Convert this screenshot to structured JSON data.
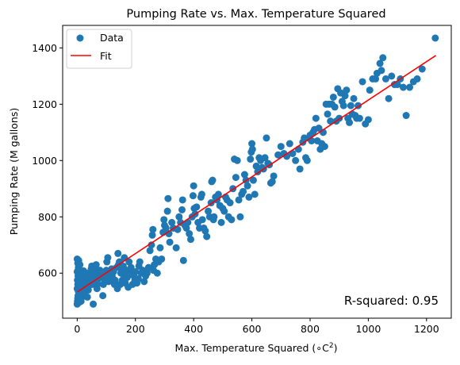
{
  "chart_data": {
    "type": "scatter",
    "title": "Pumping Rate vs. Max. Temperature Squared",
    "xlabel_text": "Max. Temperature Squared (",
    "xlabel_super_text": "∘C",
    "xlabel_exp": "2",
    "xlabel_close": ")",
    "ylabel": "Pumping Rate (M gallons)",
    "xlim": [
      -50,
      1285
    ],
    "ylim": [
      440,
      1480
    ],
    "x_ticks": [
      0,
      200,
      400,
      600,
      800,
      1000,
      1200
    ],
    "y_ticks": [
      600,
      800,
      1000,
      1200,
      1400
    ],
    "x_tick_labels": [
      "0",
      "200",
      "400",
      "600",
      "800",
      "1000",
      "1200"
    ],
    "y_tick_labels": [
      "600",
      "800",
      "1000",
      "1200",
      "1400"
    ],
    "grid": false,
    "legend_position": "top-left",
    "annotation": "R-squared: 0.95",
    "series": [
      {
        "name": "Data",
        "kind": "scatter",
        "color": "#1f77b4",
        "points": [
          [
            0,
            490
          ],
          [
            1,
            500
          ],
          [
            2,
            510
          ],
          [
            3,
            520
          ],
          [
            4,
            535
          ],
          [
            0,
            545
          ],
          [
            2,
            560
          ],
          [
            1,
            575
          ],
          [
            3,
            590
          ],
          [
            0,
            605
          ],
          [
            4,
            620
          ],
          [
            2,
            635
          ],
          [
            0,
            650
          ],
          [
            5,
            495
          ],
          [
            6,
            505
          ],
          [
            8,
            515
          ],
          [
            7,
            530
          ],
          [
            9,
            545
          ],
          [
            10,
            555
          ],
          [
            8,
            570
          ],
          [
            11,
            585
          ],
          [
            12,
            600
          ],
          [
            6,
            615
          ],
          [
            9,
            630
          ],
          [
            5,
            645
          ],
          [
            13,
            500
          ],
          [
            15,
            512
          ],
          [
            14,
            525
          ],
          [
            16,
            540
          ],
          [
            18,
            552
          ],
          [
            17,
            568
          ],
          [
            20,
            580
          ],
          [
            19,
            595
          ],
          [
            22,
            608
          ],
          [
            24,
            520
          ],
          [
            25,
            535
          ],
          [
            27,
            550
          ],
          [
            26,
            565
          ],
          [
            30,
            578
          ],
          [
            28,
            590
          ],
          [
            32,
            600
          ],
          [
            35,
            515
          ],
          [
            38,
            540
          ],
          [
            40,
            555
          ],
          [
            42,
            570
          ],
          [
            44,
            585
          ],
          [
            46,
            600
          ],
          [
            48,
            615
          ],
          [
            50,
            625
          ],
          [
            52,
            560
          ],
          [
            55,
            575
          ],
          [
            58,
            590
          ],
          [
            60,
            605
          ],
          [
            62,
            620
          ],
          [
            65,
            630
          ],
          [
            55,
            490
          ],
          [
            68,
            545
          ],
          [
            70,
            560
          ],
          [
            72,
            578
          ],
          [
            75,
            595
          ],
          [
            78,
            610
          ],
          [
            80,
            585
          ],
          [
            85,
            600
          ],
          [
            88,
            520
          ],
          [
            90,
            560
          ],
          [
            95,
            575
          ],
          [
            98,
            590
          ],
          [
            100,
            610
          ],
          [
            102,
            640
          ],
          [
            105,
            655
          ],
          [
            108,
            570
          ],
          [
            110,
            585
          ],
          [
            115,
            600
          ],
          [
            118,
            615
          ],
          [
            120,
            590
          ],
          [
            125,
            605
          ],
          [
            128,
            560
          ],
          [
            130,
            575
          ],
          [
            135,
            620
          ],
          [
            138,
            545
          ],
          [
            140,
            670
          ],
          [
            142,
            630
          ],
          [
            145,
            640
          ],
          [
            148,
            560
          ],
          [
            150,
            600
          ],
          [
            152,
            615
          ],
          [
            155,
            575
          ],
          [
            158,
            625
          ],
          [
            160,
            580
          ],
          [
            162,
            655
          ],
          [
            165,
            565
          ],
          [
            168,
            600
          ],
          [
            170,
            610
          ],
          [
            172,
            585
          ],
          [
            175,
            550
          ],
          [
            178,
            640
          ],
          [
            180,
            600
          ],
          [
            185,
            620
          ],
          [
            188,
            595
          ],
          [
            190,
            560
          ],
          [
            195,
            590
          ],
          [
            198,
            575
          ],
          [
            200,
            605
          ],
          [
            205,
            565
          ],
          [
            210,
            580
          ],
          [
            212,
            625
          ],
          [
            215,
            640
          ],
          [
            220,
            600
          ],
          [
            225,
            610
          ],
          [
            230,
            570
          ],
          [
            235,
            590
          ],
          [
            240,
            600
          ],
          [
            245,
            620
          ],
          [
            250,
            680
          ],
          [
            255,
            700
          ],
          [
            258,
            735
          ],
          [
            260,
            755
          ],
          [
            262,
            610
          ],
          [
            265,
            630
          ],
          [
            270,
            650
          ],
          [
            275,
            600
          ],
          [
            280,
            640
          ],
          [
            285,
            690
          ],
          [
            290,
            650
          ],
          [
            295,
            745
          ],
          [
            298,
            790
          ],
          [
            300,
            770
          ],
          [
            305,
            760
          ],
          [
            310,
            820
          ],
          [
            312,
            865
          ],
          [
            315,
            740
          ],
          [
            318,
            710
          ],
          [
            325,
            780
          ],
          [
            330,
            760
          ],
          [
            340,
            690
          ],
          [
            345,
            755
          ],
          [
            350,
            800
          ],
          [
            355,
            780
          ],
          [
            360,
            825
          ],
          [
            362,
            860
          ],
          [
            365,
            645
          ],
          [
            370,
            770
          ],
          [
            375,
            760
          ],
          [
            380,
            780
          ],
          [
            385,
            740
          ],
          [
            390,
            720
          ],
          [
            395,
            800
          ],
          [
            398,
            875
          ],
          [
            400,
            910
          ],
          [
            402,
            830
          ],
          [
            405,
            810
          ],
          [
            410,
            835
          ],
          [
            415,
            780
          ],
          [
            420,
            760
          ],
          [
            425,
            870
          ],
          [
            428,
            880
          ],
          [
            430,
            790
          ],
          [
            435,
            760
          ],
          [
            440,
            750
          ],
          [
            445,
            730
          ],
          [
            450,
            820
          ],
          [
            455,
            800
          ],
          [
            460,
            850
          ],
          [
            462,
            925
          ],
          [
            465,
            930
          ],
          [
            468,
            790
          ],
          [
            470,
            800
          ],
          [
            475,
            870
          ],
          [
            480,
            860
          ],
          [
            485,
            880
          ],
          [
            490,
            840
          ],
          [
            495,
            780
          ],
          [
            500,
            830
          ],
          [
            505,
            820
          ],
          [
            510,
            870
          ],
          [
            515,
            860
          ],
          [
            520,
            800
          ],
          [
            525,
            850
          ],
          [
            530,
            790
          ],
          [
            535,
            900
          ],
          [
            540,
            1005
          ],
          [
            545,
            940
          ],
          [
            550,
            1000
          ],
          [
            555,
            860
          ],
          [
            560,
            800
          ],
          [
            565,
            880
          ],
          [
            570,
            890
          ],
          [
            575,
            950
          ],
          [
            580,
            930
          ],
          [
            585,
            910
          ],
          [
            590,
            870
          ],
          [
            595,
            1005
          ],
          [
            598,
            1030
          ],
          [
            600,
            1060
          ],
          [
            602,
            1040
          ],
          [
            605,
            930
          ],
          [
            610,
            880
          ],
          [
            615,
            980
          ],
          [
            620,
            960
          ],
          [
            625,
            1010
          ],
          [
            630,
            1000
          ],
          [
            635,
            975
          ],
          [
            640,
            970
          ],
          [
            645,
            1010
          ],
          [
            650,
            1080
          ],
          [
            655,
            990
          ],
          [
            660,
            985
          ],
          [
            665,
            920
          ],
          [
            670,
            925
          ],
          [
            675,
            945
          ],
          [
            690,
            1020
          ],
          [
            700,
            1050
          ],
          [
            710,
            1025
          ],
          [
            720,
            1015
          ],
          [
            730,
            1060
          ],
          [
            740,
            1025
          ],
          [
            750,
            1000
          ],
          [
            760,
            1040
          ],
          [
            765,
            970
          ],
          [
            775,
            1065
          ],
          [
            780,
            1080
          ],
          [
            785,
            1010
          ],
          [
            790,
            1000
          ],
          [
            795,
            1080
          ],
          [
            800,
            1090
          ],
          [
            805,
            1070
          ],
          [
            810,
            1100
          ],
          [
            815,
            1110
          ],
          [
            820,
            1150
          ],
          [
            825,
            1070
          ],
          [
            830,
            1115
          ],
          [
            835,
            1040
          ],
          [
            840,
            1060
          ],
          [
            845,
            1100
          ],
          [
            850,
            1050
          ],
          [
            855,
            1200
          ],
          [
            860,
            1165
          ],
          [
            865,
            1200
          ],
          [
            870,
            1140
          ],
          [
            875,
            1200
          ],
          [
            880,
            1225
          ],
          [
            885,
            1190
          ],
          [
            890,
            1140
          ],
          [
            895,
            1255
          ],
          [
            900,
            1150
          ],
          [
            905,
            1240
          ],
          [
            910,
            1210
          ],
          [
            915,
            1195
          ],
          [
            920,
            1230
          ],
          [
            925,
            1250
          ],
          [
            930,
            1150
          ],
          [
            935,
            1135
          ],
          [
            940,
            1195
          ],
          [
            945,
            1165
          ],
          [
            950,
            1220
          ],
          [
            955,
            1160
          ],
          [
            960,
            1150
          ],
          [
            965,
            1195
          ],
          [
            970,
            1150
          ],
          [
            980,
            1280
          ],
          [
            990,
            1130
          ],
          [
            1000,
            1145
          ],
          [
            1005,
            1250
          ],
          [
            1015,
            1290
          ],
          [
            1025,
            1290
          ],
          [
            1030,
            1310
          ],
          [
            1040,
            1345
          ],
          [
            1045,
            1320
          ],
          [
            1050,
            1365
          ],
          [
            1060,
            1290
          ],
          [
            1070,
            1220
          ],
          [
            1080,
            1300
          ],
          [
            1090,
            1270
          ],
          [
            1100,
            1270
          ],
          [
            1110,
            1290
          ],
          [
            1120,
            1260
          ],
          [
            1130,
            1160
          ],
          [
            1142,
            1260
          ],
          [
            1155,
            1280
          ],
          [
            1168,
            1290
          ],
          [
            1185,
            1325
          ],
          [
            1230,
            1435
          ]
        ]
      },
      {
        "name": "Fit",
        "kind": "line",
        "color": "#ff0000",
        "points": [
          [
            0,
            533
          ],
          [
            1232,
            1373
          ]
        ]
      }
    ]
  }
}
